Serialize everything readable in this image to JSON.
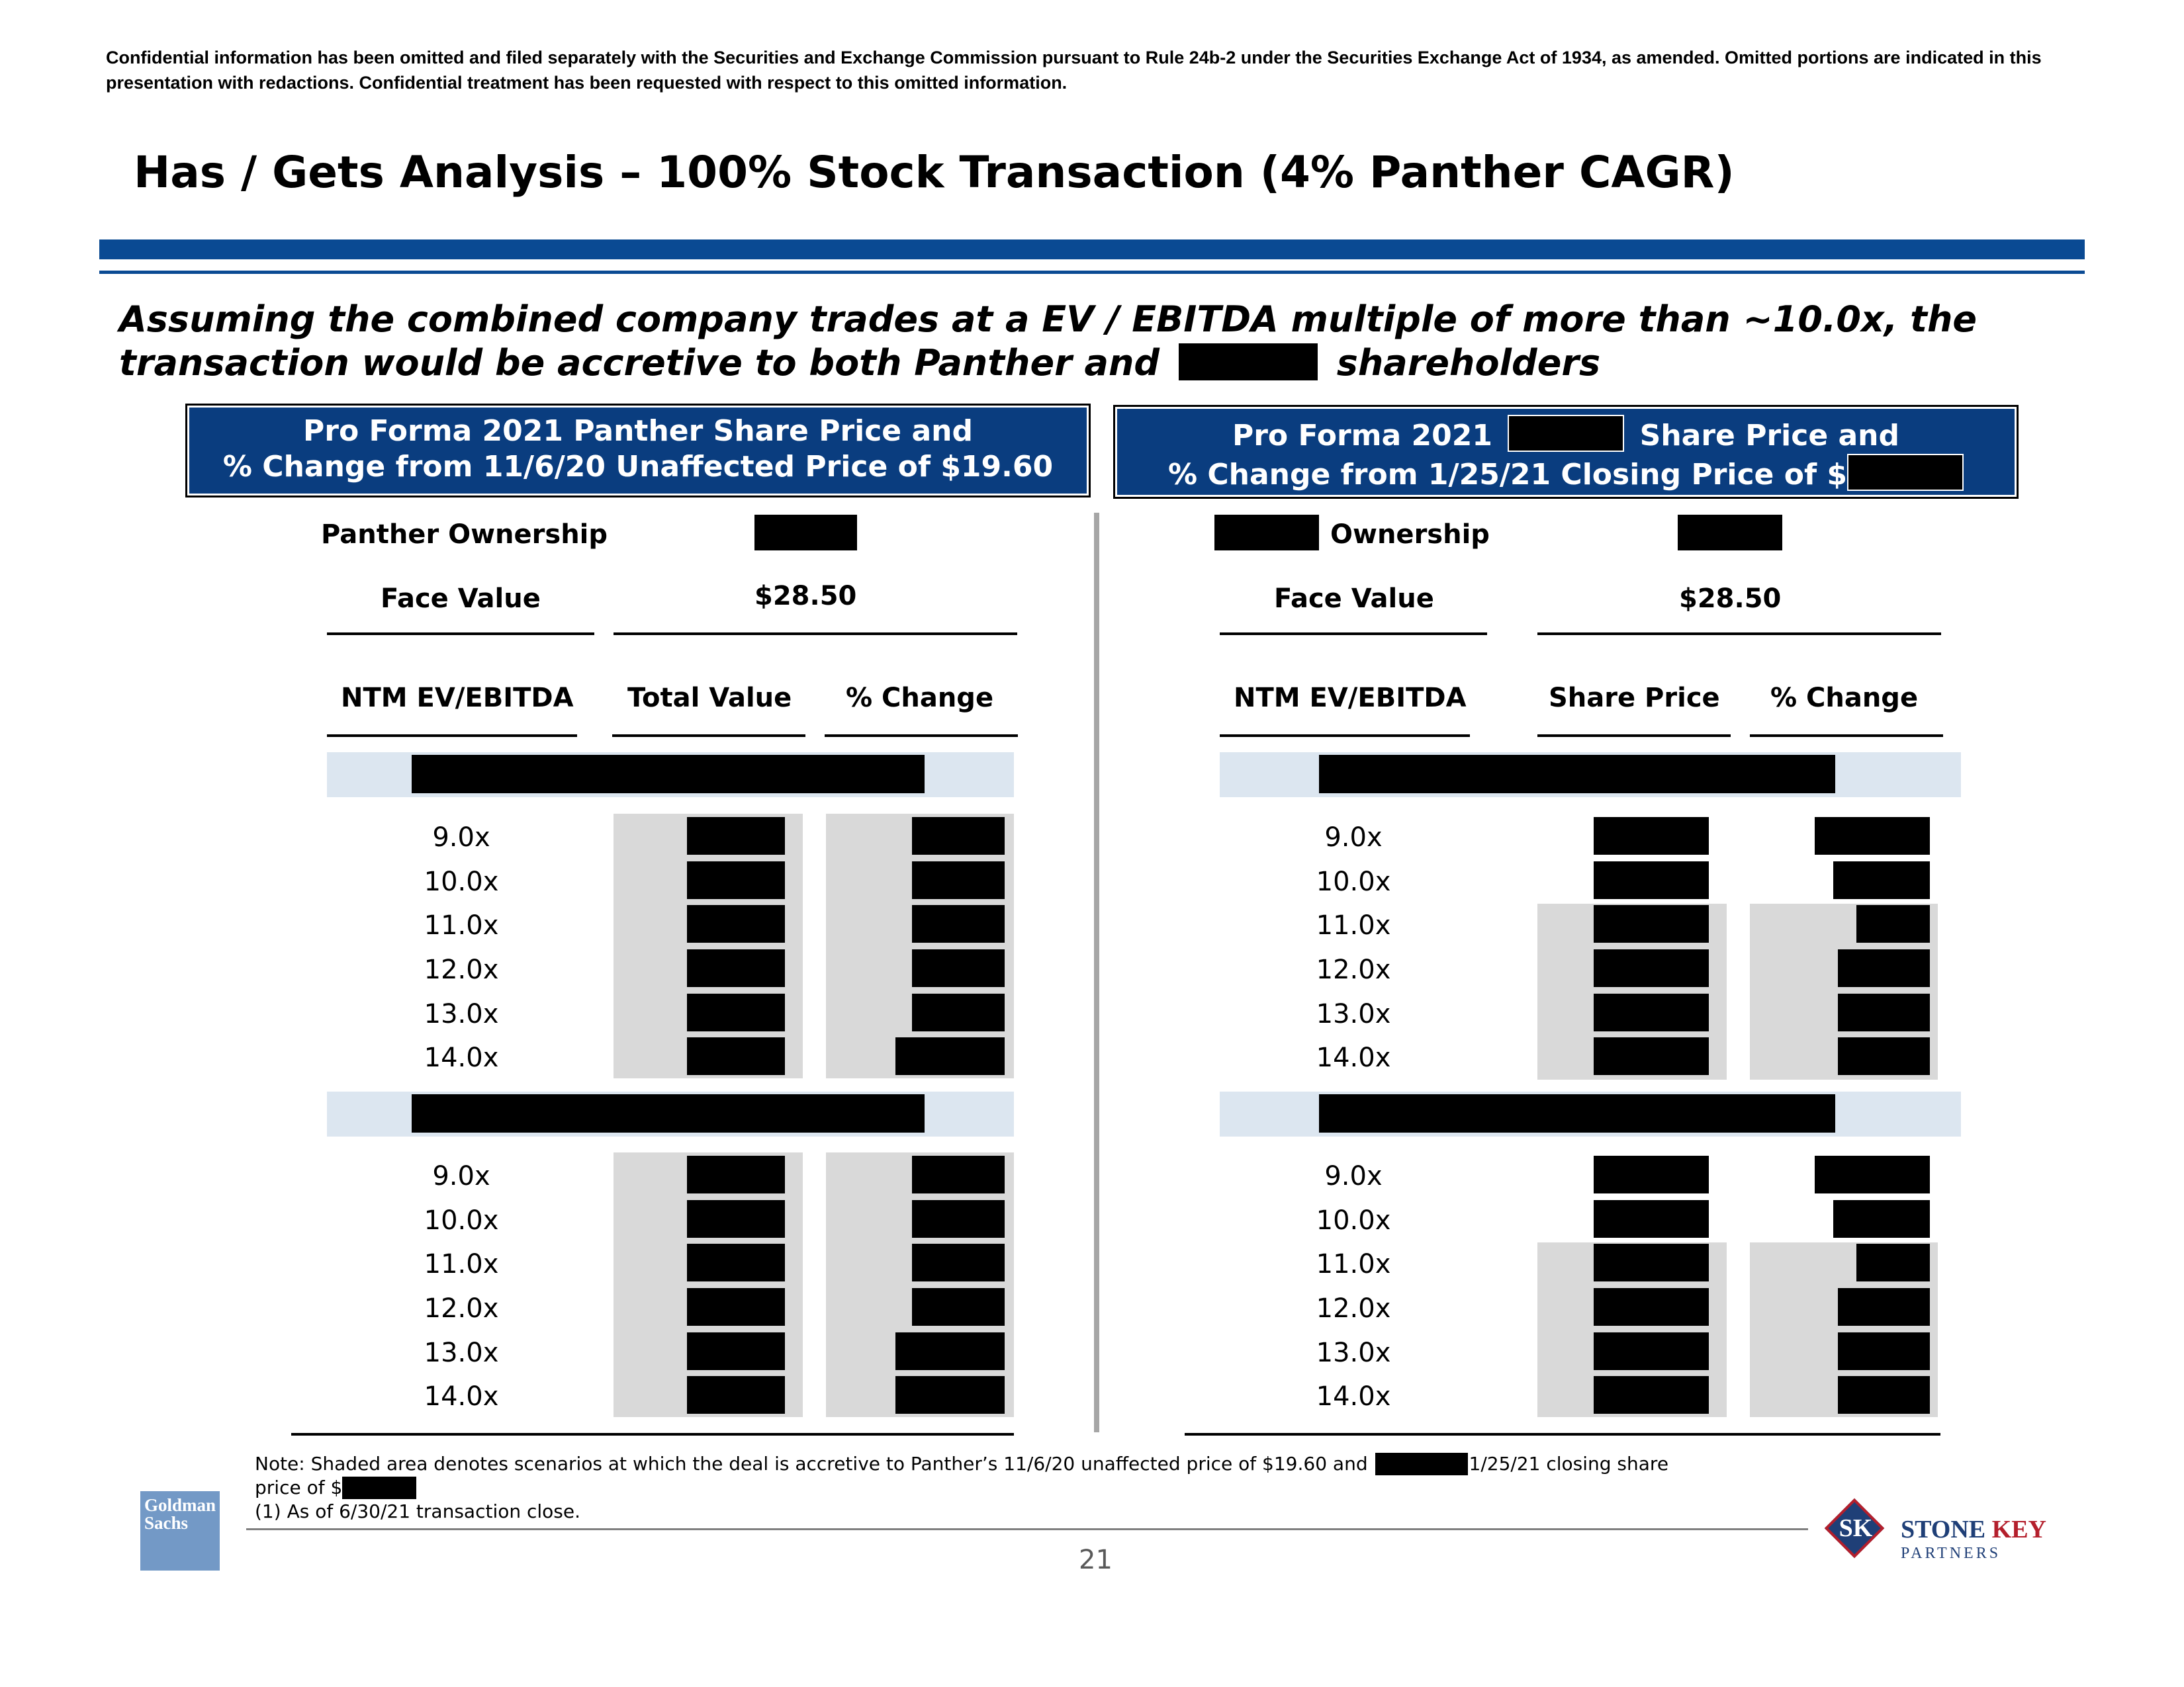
{
  "confidential_notice": "Confidential information has been omitted and filed separately with the Securities and Exchange Commission pursuant to Rule 24b-2 under the Securities Exchange Act of 1934, as amended. Omitted portions are indicated in this presentation with redactions. Confidential treatment has been requested with respect to this omitted information.",
  "title": "Has / Gets Analysis – 100% Stock Transaction (4% Panther CAGR)",
  "subtitle_line1": "Assuming the combined company trades at a EV / EBITDA multiple of more than ~10.0x, the",
  "subtitle_line2_a": "transaction would be accretive to both Panther and",
  "subtitle_line2_b": "shareholders",
  "left": {
    "header_line1": "Pro Forma 2021 Panther Share Price and",
    "header_line2": "% Change from 11/6/20 Unaffected Price of $19.60",
    "ownership_label": "Panther Ownership",
    "face_value_label": "Face Value",
    "face_value": "$28.50",
    "col1": "NTM EV/EBITDA",
    "col2": "Total Value",
    "col3": "% Change",
    "multiples": [
      "9.0x",
      "10.0x",
      "11.0x",
      "12.0x",
      "13.0x",
      "14.0x"
    ]
  },
  "right": {
    "header_line1_a": "Pro Forma 2021",
    "header_line1_b": "Share Price and",
    "header_line2": "% Change from 1/25/21 Closing Price of $",
    "ownership_label": "Ownership",
    "face_value_label": "Face Value",
    "face_value": "$28.50",
    "col1": "NTM EV/EBITDA",
    "col2": "Share Price",
    "col3": "% Change",
    "multiples": [
      "9.0x",
      "10.0x",
      "11.0x",
      "12.0x",
      "13.0x",
      "14.0x"
    ]
  },
  "note_line1_a": "Note: Shaded area denotes scenarios at which the deal is accretive to Panther’s 11/6/20 unaffected price of $19.60 and",
  "note_line1_b": "1/25/21 closing share",
  "note_line2": "price of $",
  "note_line3": "(1)   As of 6/30/21 transaction close.",
  "page_number": "21",
  "logo_left_line1": "Goldman",
  "logo_left_line2": "Sachs",
  "logo_right_letters": "SK",
  "logo_right_name_a": "STONE",
  "logo_right_name_b": "KEY",
  "logo_right_sub": "PARTNERS",
  "colors": {
    "navy": "#0a3d7f",
    "band": "#dce6f0",
    "shade": "#d9d9d9"
  }
}
